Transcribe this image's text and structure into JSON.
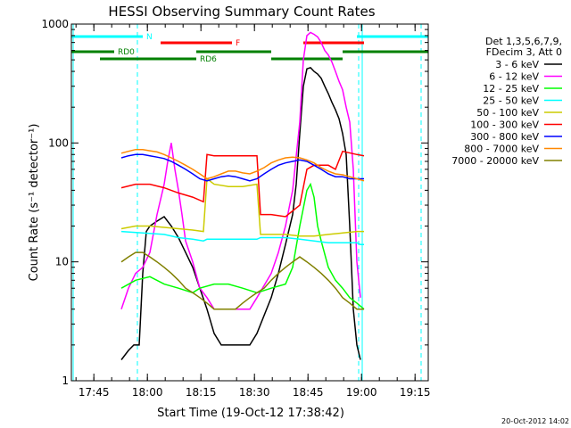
{
  "chart_data": {
    "type": "line",
    "title": "HESSI Observing Summary Count Rates",
    "xlabel": "Start Time (19-Oct-12 17:38:42)",
    "ylabel": "Count Rate (s⁻¹ detector⁻¹)",
    "x_unit": "minutes",
    "xlim": [
      0,
      100
    ],
    "y_scale": "log",
    "ylim": [
      1,
      1000
    ],
    "x_ticks": [
      {
        "value": 6.3,
        "label": "17:45"
      },
      {
        "value": 21.3,
        "label": "18:00"
      },
      {
        "value": 36.3,
        "label": "18:15"
      },
      {
        "value": 51.3,
        "label": "18:30"
      },
      {
        "value": 66.3,
        "label": "18:45"
      },
      {
        "value": 81.3,
        "label": "19:00"
      },
      {
        "value": 96.3,
        "label": "19:15"
      }
    ],
    "y_ticks": [
      {
        "value": 1,
        "label": "1"
      },
      {
        "value": 10,
        "label": "10"
      },
      {
        "value": 100,
        "label": "100"
      },
      {
        "value": 1000,
        "label": "1000"
      }
    ],
    "legend": {
      "position": "right",
      "header": [
        "Det 1,3,5,6,7,9,",
        "FDecim 3, Att 0"
      ]
    },
    "series": [
      {
        "name": "3 - 6 keV",
        "color": "#000000",
        "x": [
          14,
          16,
          17.5,
          19,
          20,
          21,
          22,
          24,
          26,
          28,
          30,
          32,
          34,
          36,
          38,
          40,
          42,
          50,
          52,
          56,
          58,
          60,
          62,
          63,
          64,
          65,
          66,
          67,
          68,
          69,
          70,
          71,
          72,
          73,
          74,
          75,
          76,
          77,
          78,
          79,
          80,
          81
        ],
        "y": [
          1.5,
          1.8,
          2,
          2,
          8,
          18,
          20,
          22,
          24,
          20,
          16,
          12,
          9,
          6,
          4,
          2.5,
          2,
          2,
          2.5,
          5,
          8,
          14,
          25,
          45,
          120,
          300,
          420,
          430,
          400,
          380,
          350,
          300,
          260,
          220,
          190,
          160,
          120,
          80,
          20,
          4,
          2,
          1.5
        ]
      },
      {
        "name": "6 - 12 keV",
        "color": "#ff00ff",
        "x": [
          14,
          16,
          18,
          20,
          22,
          24,
          26,
          27,
          28,
          29,
          30,
          31,
          32,
          34,
          36,
          38,
          40,
          42,
          50,
          52,
          56,
          58,
          60,
          62,
          64,
          65,
          66,
          67,
          68,
          69,
          70,
          71,
          72,
          73,
          74,
          75,
          76,
          77,
          78,
          79,
          80,
          81
        ],
        "y": [
          4,
          6,
          8,
          9,
          12,
          25,
          45,
          70,
          100,
          60,
          40,
          25,
          15,
          10,
          6,
          5,
          4,
          4,
          4,
          5,
          8,
          12,
          20,
          40,
          150,
          500,
          800,
          850,
          820,
          780,
          700,
          600,
          550,
          480,
          400,
          330,
          280,
          200,
          150,
          60,
          10,
          5
        ]
      },
      {
        "name": "12 - 25 keV",
        "color": "#00ff00",
        "x": [
          14,
          18,
          22,
          26,
          30,
          34,
          36,
          40,
          44,
          48,
          52,
          56,
          60,
          62,
          64,
          66,
          67,
          68,
          69,
          70,
          72,
          74,
          76,
          78,
          80,
          82
        ],
        "y": [
          6,
          7,
          7.5,
          6.5,
          6,
          5.5,
          6,
          6.5,
          6.5,
          6,
          5.5,
          6,
          6.5,
          9,
          20,
          40,
          45,
          35,
          20,
          15,
          9,
          7,
          6,
          5,
          4.5,
          4
        ]
      },
      {
        "name": "25 - 50 keV",
        "color": "#00ffff",
        "x": [
          14,
          20,
          26,
          30,
          34,
          37,
          38,
          40,
          44,
          48,
          52,
          53,
          56,
          60,
          64,
          68,
          72,
          76,
          80,
          81,
          82
        ],
        "y": [
          18,
          17.5,
          17,
          16,
          15.5,
          15,
          15.5,
          15.5,
          15.5,
          15.5,
          15.5,
          16,
          16,
          16,
          15.5,
          15,
          14.5,
          14.5,
          14.5,
          14,
          14
        ]
      },
      {
        "name": "50 - 100 keV",
        "color": "#cccc00",
        "x": [
          14,
          18,
          22,
          26,
          30,
          34,
          37,
          38,
          40,
          44,
          48,
          52,
          53,
          56,
          60,
          64,
          68,
          72,
          76,
          80,
          82
        ],
        "y": [
          19,
          20,
          20,
          19.5,
          19,
          18.5,
          18,
          50,
          45,
          43,
          43,
          45,
          17,
          17,
          17,
          16.5,
          16.5,
          17,
          17.5,
          18,
          18
        ]
      },
      {
        "name": "100 - 300 keV",
        "color": "#ff0000",
        "x": [
          14,
          18,
          22,
          26,
          30,
          34,
          37,
          38,
          40,
          44,
          48,
          52,
          53,
          56,
          60,
          64,
          66,
          68,
          72,
          74,
          76,
          80,
          82
        ],
        "y": [
          42,
          45,
          45,
          42,
          38,
          35,
          32,
          80,
          78,
          78,
          78,
          78,
          25,
          25,
          24,
          30,
          60,
          65,
          65,
          60,
          85,
          80,
          78
        ]
      },
      {
        "name": "300 - 800 keV",
        "color": "#0000ff",
        "x": [
          14,
          16,
          18,
          20,
          22,
          24,
          26,
          28,
          30,
          32,
          34,
          36,
          38,
          40,
          42,
          44,
          46,
          48,
          50,
          52,
          54,
          56,
          58,
          60,
          62,
          64,
          66,
          68,
          70,
          72,
          74,
          76,
          78,
          80,
          82
        ],
        "y": [
          75,
          78,
          80,
          80,
          78,
          76,
          74,
          70,
          65,
          60,
          55,
          50,
          48,
          50,
          52,
          53,
          52,
          50,
          48,
          50,
          55,
          60,
          65,
          68,
          70,
          72,
          70,
          65,
          60,
          55,
          52,
          52,
          50,
          50,
          50
        ]
      },
      {
        "name": "800 - 7000 keV",
        "color": "#ff8800",
        "x": [
          14,
          16,
          18,
          20,
          22,
          24,
          26,
          28,
          30,
          32,
          34,
          36,
          38,
          40,
          42,
          44,
          46,
          48,
          50,
          52,
          54,
          56,
          58,
          60,
          62,
          64,
          66,
          68,
          70,
          72,
          74,
          76,
          78,
          80,
          82
        ],
        "y": [
          82,
          85,
          88,
          88,
          86,
          84,
          80,
          75,
          70,
          65,
          60,
          55,
          50,
          52,
          55,
          58,
          58,
          56,
          55,
          58,
          62,
          68,
          72,
          75,
          76,
          75,
          72,
          68,
          62,
          58,
          55,
          54,
          52,
          50,
          48
        ]
      },
      {
        "name": "7000 - 20000 keV",
        "color": "#808000",
        "x": [
          14,
          16,
          18,
          20,
          22,
          24,
          26,
          28,
          30,
          32,
          34,
          36,
          38,
          40,
          42,
          44,
          46,
          48,
          50,
          52,
          54,
          56,
          58,
          60,
          62,
          64,
          66,
          68,
          70,
          72,
          74,
          76,
          78,
          80,
          82
        ],
        "y": [
          10,
          11,
          12,
          12,
          11,
          10,
          9,
          8,
          7,
          6,
          5.5,
          5,
          4.5,
          4,
          4,
          4,
          4,
          4.5,
          5,
          5.5,
          6,
          7,
          8,
          9,
          10,
          11,
          10,
          9,
          8,
          7,
          6,
          5,
          4.5,
          4,
          4
        ]
      }
    ],
    "flag_lines": [
      {
        "label": "N",
        "color": "#00ffff",
        "segments": [
          [
            0,
            20
          ],
          [
            80,
            100
          ]
        ]
      },
      {
        "label": "F",
        "color": "#ff0000",
        "segments": [
          [
            25,
            45
          ],
          [
            65,
            82
          ]
        ]
      },
      {
        "label": "RD0",
        "color": "#008000",
        "segments": [
          [
            0,
            12
          ],
          [
            35,
            56
          ],
          [
            76,
            100
          ]
        ]
      },
      {
        "label": "RD6",
        "color": "#008000",
        "segments": [
          [
            8,
            35
          ],
          [
            56,
            76
          ]
        ]
      }
    ],
    "vertical_markers": [
      {
        "x": 0.5,
        "color": "#00ffff",
        "style": "solid"
      },
      {
        "x": 18.5,
        "color": "#00ffff",
        "style": "dashed"
      },
      {
        "x": 80.5,
        "color": "#00ffff",
        "style": "dashed"
      },
      {
        "x": 81.5,
        "color": "#00ffff",
        "style": "solid"
      },
      {
        "x": 98,
        "color": "#00ffff",
        "style": "dashed"
      }
    ],
    "footer": "20-Oct-2012 14:02"
  }
}
